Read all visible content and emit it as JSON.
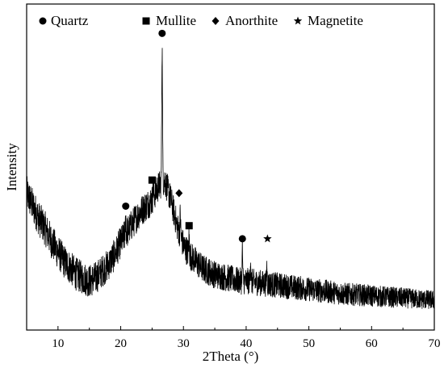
{
  "chart_data": {
    "type": "line",
    "xlabel": "2Theta (°)",
    "ylabel": "Intensity",
    "xlim": [
      5,
      70
    ],
    "ylim": [
      0,
      100
    ],
    "x_ticks": [
      10,
      20,
      30,
      40,
      50,
      60,
      70
    ],
    "x_tick_labels": [
      "10",
      "20",
      "30",
      "40",
      "50",
      "60",
      "70"
    ],
    "y_ticks_shown": false,
    "grid": false,
    "legend_position": "top-center",
    "line_color": "#000000",
    "legend": [
      {
        "symbol": "circle",
        "label": "Quartz"
      },
      {
        "symbol": "square",
        "label": "Mullite"
      },
      {
        "symbol": "diamond",
        "label": "Anorthite"
      },
      {
        "symbol": "star",
        "label": "Magnetite"
      }
    ],
    "series": [
      {
        "x": [
          5,
          6,
          7,
          8,
          9,
          10,
          11,
          12,
          13,
          14,
          15,
          16,
          17,
          18,
          19,
          20,
          21,
          22,
          23,
          24,
          25,
          26,
          27,
          28,
          29,
          30,
          31,
          32,
          33,
          34,
          35,
          36,
          37,
          38,
          39,
          40,
          42,
          44,
          46,
          48,
          50,
          52,
          54,
          56,
          58,
          60,
          62,
          64,
          66,
          68,
          70
        ],
        "y": [
          42,
          38,
          34,
          31,
          27,
          24,
          21,
          19,
          17,
          16,
          15,
          16,
          18,
          20,
          23,
          27,
          30,
          33,
          36,
          38,
          40,
          44,
          46,
          40,
          32,
          26,
          23,
          21,
          19,
          18,
          17,
          16.5,
          16,
          15.5,
          15,
          15,
          14.5,
          14,
          13.5,
          13,
          12.5,
          12,
          11.5,
          11,
          10.8,
          10.5,
          10.2,
          10,
          9.7,
          9.4,
          9.2
        ]
      }
    ],
    "peaks": [
      {
        "x": 20.8,
        "y": 35,
        "phase": "Quartz"
      },
      {
        "x": 26.6,
        "y": 87,
        "phase": "Quartz"
      },
      {
        "x": 25.2,
        "y": 44,
        "phase": "Mullite"
      },
      {
        "x": 29.5,
        "y": 36,
        "phase": "Anorthite"
      },
      {
        "x": 30.9,
        "y": 29,
        "phase": "Mullite"
      },
      {
        "x": 39.4,
        "y": 25,
        "phase": "Quartz"
      },
      {
        "x": 40.7,
        "y": 22,
        "phase": "Magnetite"
      },
      {
        "x": 43.3,
        "y": 20,
        "phase": "Magnetite"
      }
    ],
    "markers": [
      {
        "symbol": "circle",
        "x": 26.6,
        "y": 91
      },
      {
        "symbol": "circle",
        "x": 20.8,
        "y": 38
      },
      {
        "symbol": "square",
        "x": 25.0,
        "y": 46
      },
      {
        "symbol": "diamond",
        "x": 29.3,
        "y": 42
      },
      {
        "symbol": "square",
        "x": 30.9,
        "y": 32
      },
      {
        "symbol": "circle",
        "x": 39.4,
        "y": 28
      },
      {
        "symbol": "star",
        "x": 43.4,
        "y": 28
      }
    ]
  }
}
